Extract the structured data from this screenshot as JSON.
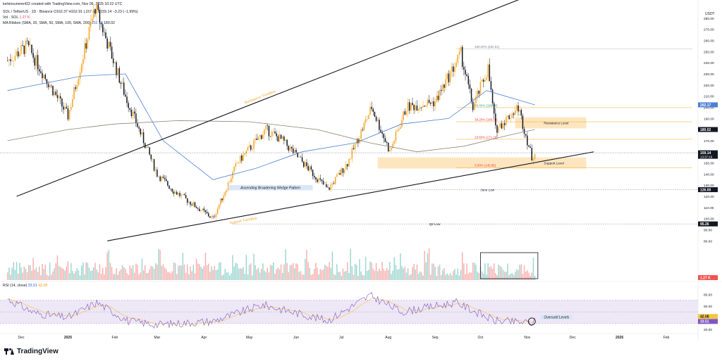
{
  "header": {
    "author_line": "kelvinsunene422 created with TradingView.com, Nov 06, 2025 10:22 UTC",
    "symbol_line": "SOL / TetherUS · 1D · Binance  O162.37  H162.91  L157.66  C159.14  −3.23 (−1.99%)",
    "volume_line_label": "Vol · SOL",
    "volume_line_value": "1.27 K",
    "ma_line_label": "MA Ribbon (SMA, 20, SMA, 50, SMA, 100, SMA, 200)",
    "ma_value_1": "202.17",
    "ma_value_2": "180.02",
    "rsi_line_label": "RSI (14, close)",
    "rsi_value_1": "33.51",
    "rsi_value_2": "42.08"
  },
  "branding": {
    "logo_text": "TradingView",
    "logo_icon": "tradingview-logo-icon"
  },
  "colors": {
    "up": "#26a69a",
    "down": "#ef5350",
    "candle_up": "#f5a623",
    "candle_down": "#131722",
    "ma50": "#4c7fd6",
    "ma200": "#8a8278",
    "zone_fill": "#fde3b8",
    "rsi_line": "#7e57c2",
    "rsi_band": "#ede7f6",
    "accent_orange": "#f5a623",
    "price_tag": "#131722"
  },
  "chart_data": {
    "type": "candlestick",
    "title": "SOL / TetherUS · 1D · Binance",
    "ylabel": "USDT",
    "y_axis_label": "USDT",
    "ylim": [
      72,
      290
    ],
    "y_ticks": [
      280,
      270,
      260,
      250,
      240,
      230,
      220,
      210,
      200,
      190,
      180,
      170,
      160,
      150,
      140,
      130,
      120,
      110,
      100,
      90,
      80,
      70
    ],
    "x_ticks": [
      "Dec",
      "2025",
      "Feb",
      "Mar",
      "Apr",
      "May",
      "Jun",
      "Jul",
      "Aug",
      "Sep",
      "Oct",
      "Nov",
      "Dec",
      "2026",
      "Feb"
    ],
    "price_anchors": {
      "x": [
        "2024-11-22",
        "2024-12-05",
        "2025-01-01",
        "2025-01-19",
        "2025-02-08",
        "2025-03-01",
        "2025-03-12",
        "2025-04-07",
        "2025-04-23",
        "2025-05-12",
        "2025-05-23",
        "2025-06-22",
        "2025-07-05",
        "2025-07-21",
        "2025-08-02",
        "2025-08-13",
        "2025-09-01",
        "2025-09-18",
        "2025-09-26",
        "2025-10-06",
        "2025-10-11",
        "2025-10-26",
        "2025-11-04",
        "2025-11-06"
      ],
      "close": [
        242,
        255,
        192,
        290,
        210,
        140,
        125,
        100,
        150,
        180,
        170,
        126,
        150,
        200,
        160,
        200,
        205,
        248,
        200,
        235,
        180,
        200,
        155,
        159.14
      ]
    },
    "series": [
      {
        "name": "MA Ribbon SMA 50",
        "x": [
          "2024-11-22",
          "2025-01-10",
          "2025-02-08",
          "2025-03-05",
          "2025-04-07",
          "2025-05-05",
          "2025-06-05",
          "2025-07-10",
          "2025-08-10",
          "2025-09-10",
          "2025-10-05",
          "2025-11-06"
        ],
        "values": [
          215,
          228,
          230,
          170,
          135,
          145,
          160,
          168,
          185,
          190,
          215,
          202.17
        ]
      },
      {
        "name": "MA Ribbon SMA 200",
        "x": [
          "2024-11-22",
          "2025-01-01",
          "2025-02-01",
          "2025-03-15",
          "2025-05-01",
          "2025-06-15",
          "2025-07-20",
          "2025-08-20",
          "2025-09-20",
          "2025-10-20",
          "2025-11-06"
        ],
        "values": [
          170,
          180,
          185,
          188,
          187,
          180,
          168,
          160,
          165,
          175,
          180.02
        ]
      }
    ],
    "trendlines": [
      {
        "name": "Resistance Trendline",
        "label": "Resistance Trendline",
        "from": [
          "2024-11-28",
          120
        ],
        "to": [
          "2025-11-30",
          315
        ]
      },
      {
        "name": "Support Trendline",
        "label": "Support Trendline",
        "from": [
          "2025-01-27",
          80
        ],
        "to": [
          "2025-12-15",
          160
        ]
      }
    ],
    "zones": [
      {
        "name": "Resistance Level",
        "label": "Resistance Level",
        "x_from": "2025-10-24",
        "x_to": "2025-12-10",
        "y_from": 181,
        "y_to": 191
      },
      {
        "name": "Support Level",
        "label": "Support Level",
        "x_from": "2025-07-25",
        "x_to": "2025-12-10",
        "y_from": 145,
        "y_to": 155
      }
    ],
    "fib_levels": [
      {
        "label": "100.00% (252.51)",
        "value": 252.51
      },
      {
        "label": "50.00% (199.68)",
        "value": 199.68
      },
      {
        "label": "38.20% (186.98)",
        "value": 186.98
      },
      {
        "label": "23.60% (171.26)",
        "value": 171.26
      },
      {
        "label": "0.00% (145.85)",
        "value": 145.85
      }
    ],
    "levels": [
      {
        "label": "June Low",
        "value": 126.0,
        "tag": "126.00"
      },
      {
        "label": "Q2 Low",
        "value": 95.26,
        "tag": "95.26"
      }
    ],
    "annotations": [
      {
        "text": "Ascending Broadening Wedge Pattern",
        "x": "2025-05-15",
        "y": 127
      },
      {
        "text": "Oversold Levels",
        "x": "2025-11-22",
        "y_rsi": 31
      }
    ],
    "price_tags": [
      {
        "value": 202.17,
        "label": "202.17",
        "color": "#4c7fd6"
      },
      {
        "value": 180.02,
        "label": "180.02",
        "color": "#131722"
      },
      {
        "value": 159.14,
        "label": "159.14",
        "sub": "13:37:19",
        "color": "#131722"
      }
    ],
    "current_price": 159.14,
    "countdown": "13:37:19",
    "volume": {
      "label": "Vol · SOL",
      "last": "1.27 K"
    },
    "rsi": {
      "label": "RSI (14, close)",
      "ylim": [
        20,
        90
      ],
      "y_ticks": [
        80,
        60,
        42.08,
        20
      ],
      "upper": 70,
      "lower": 30,
      "mid": 50,
      "value": 33.51,
      "value_tag": "33.51",
      "ma_value": 42.08,
      "ma_tag": "42.08",
      "anchors": {
        "x": [
          "2024-11-22",
          "2024-12-10",
          "2025-01-01",
          "2025-01-20",
          "2025-02-10",
          "2025-03-01",
          "2025-04-07",
          "2025-05-10",
          "2025-06-22",
          "2025-07-20",
          "2025-08-10",
          "2025-09-15",
          "2025-10-10",
          "2025-11-04",
          "2025-11-06"
        ],
        "values": [
          72,
          48,
          40,
          66,
          34,
          28,
          34,
          62,
          35,
          78,
          50,
          66,
          35,
          31,
          33.51
        ]
      }
    }
  }
}
